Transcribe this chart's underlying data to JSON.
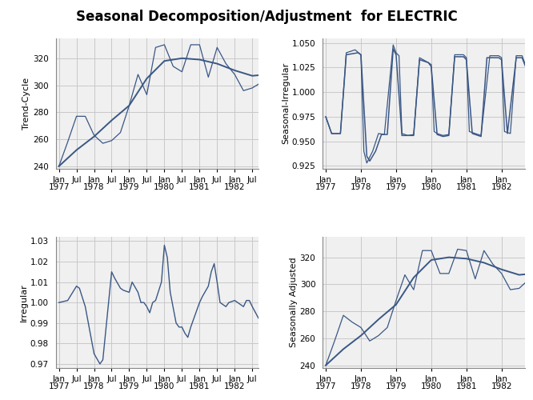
{
  "title": "Seasonal Decomposition/Adjustment  for ELECTRIC",
  "title_fontsize": 12,
  "line_color": "#3a5785",
  "bg_color": "#ffffff",
  "grid_color": "#c8c8c8",
  "panel_bg": "#f0f0f0",
  "panels": [
    {
      "ylabel": "Trend-Cycle",
      "ylim": [
        238,
        335
      ],
      "yticks": [
        240,
        260,
        280,
        300,
        320
      ],
      "xtick_pos": [
        0,
        6,
        12,
        18,
        24,
        30,
        36,
        42,
        48,
        54,
        60,
        66
      ],
      "xtick_labels": [
        "Jan\n1977",
        "Jul",
        "Jan\n1978",
        "Jul",
        "Jan\n1979",
        "Jul",
        "Jan\n1980",
        "Jul",
        "Jan\n1981",
        "Jul",
        "Jan\n1982",
        "Jul"
      ],
      "xlim": [
        -1,
        68
      ]
    },
    {
      "ylabel": "Seasonal-Irregular",
      "ylim": [
        0.922,
        1.055
      ],
      "yticks": [
        0.925,
        0.95,
        0.975,
        1.0,
        1.025,
        1.05
      ],
      "xtick_pos": [
        0,
        12,
        24,
        36,
        48,
        60
      ],
      "xtick_labels": [
        "Jan\n1977",
        "Jan\n1978",
        "Jan\n1979",
        "Jan\n1980",
        "Jan\n1981",
        "Jan\n1982"
      ],
      "xlim": [
        -1,
        68
      ]
    },
    {
      "ylabel": "Irregular",
      "ylim": [
        0.968,
        1.032
      ],
      "yticks": [
        0.97,
        0.98,
        0.99,
        1.0,
        1.01,
        1.02,
        1.03
      ],
      "xtick_pos": [
        0,
        6,
        12,
        18,
        24,
        30,
        36,
        42,
        48,
        54,
        60,
        66
      ],
      "xtick_labels": [
        "Jan\n1977",
        "Jul",
        "Jan\n1978",
        "Jul",
        "Jan\n1979",
        "Jul",
        "Jan\n1980",
        "Jul",
        "Jan\n1981",
        "Jul",
        "Jan\n1982",
        "Jul"
      ],
      "xlim": [
        -1,
        68
      ]
    },
    {
      "ylabel": "Seasonally Adjusted",
      "ylim": [
        238,
        335
      ],
      "yticks": [
        240,
        260,
        280,
        300,
        320
      ],
      "xtick_pos": [
        0,
        12,
        24,
        36,
        48,
        60
      ],
      "xtick_labels": [
        "Jan\n1977",
        "Jan\n1978",
        "Jan\n1979",
        "Jan\n1980",
        "Jan\n1981",
        "Jan\n1982"
      ],
      "xlim": [
        -1,
        68
      ]
    }
  ]
}
